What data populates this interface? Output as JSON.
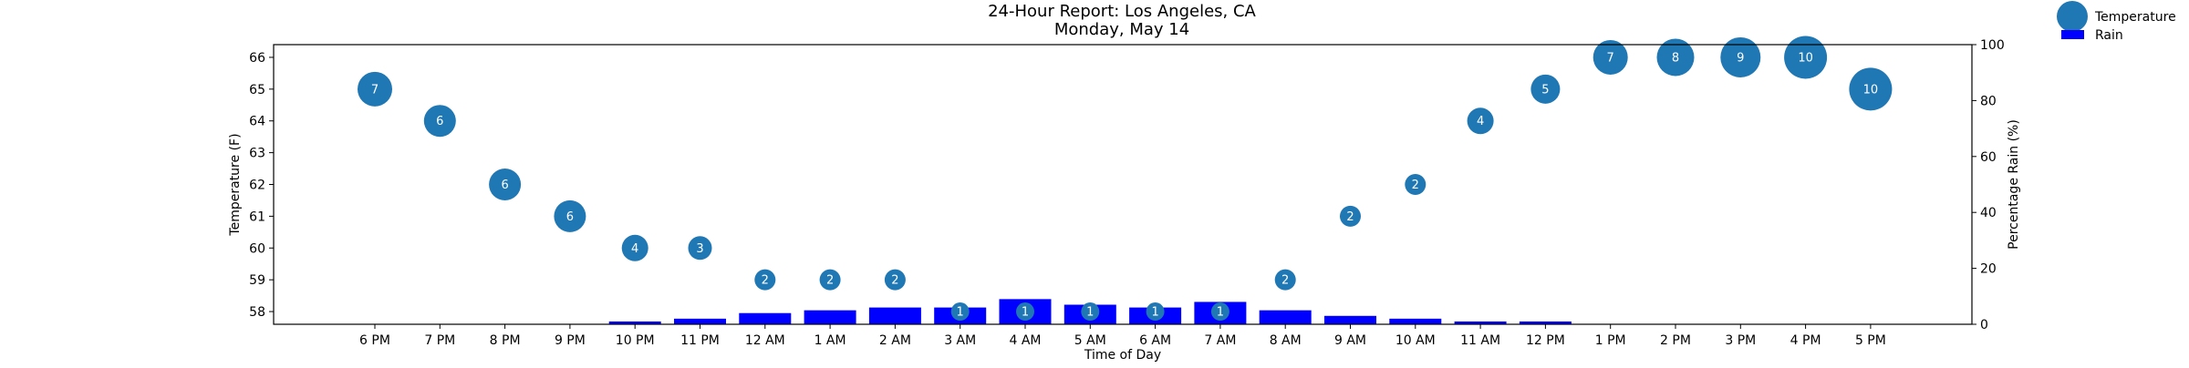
{
  "chart_data": {
    "type": "scatter",
    "title": "24-Hour Report: Los Angeles, CA",
    "subtitle": "Monday, May 14",
    "xlabel": "Time of Day",
    "ylabel": "Temperature (F)",
    "ylabel_right": "Percentage Rain (%)",
    "categories": [
      "6 PM",
      "7 PM",
      "8 PM",
      "9 PM",
      "10 PM",
      "11 PM",
      "12 AM",
      "1 AM",
      "2 AM",
      "3 AM",
      "4 AM",
      "5 AM",
      "6 AM",
      "7 AM",
      "8 AM",
      "9 AM",
      "10 AM",
      "11 AM",
      "12 PM",
      "1 PM",
      "2 PM",
      "3 PM",
      "4 PM",
      "5 PM"
    ],
    "ylim": [
      57.6,
      66.4
    ],
    "yticks": [
      58,
      59,
      60,
      61,
      62,
      63,
      64,
      65,
      66
    ],
    "ylim_right": [
      0,
      100
    ],
    "yticks_right": [
      0,
      20,
      40,
      60,
      80,
      100
    ],
    "series": [
      {
        "name": "Temperature",
        "kind": "bubble",
        "color": "#1f77b4",
        "values": [
          65,
          64,
          62,
          61,
          60,
          60,
          59,
          59,
          59,
          58,
          58,
          58,
          58,
          58,
          59,
          61,
          62,
          64,
          65,
          66,
          66,
          66,
          66,
          65
        ],
        "labels": [
          7,
          6,
          6,
          6,
          4,
          3,
          2,
          2,
          2,
          1,
          1,
          1,
          1,
          1,
          2,
          2,
          2,
          4,
          5,
          7,
          8,
          9,
          10,
          10
        ]
      },
      {
        "name": "Rain",
        "kind": "bar",
        "axis": "right",
        "color": "#0000ff",
        "values": [
          0,
          0,
          0,
          0,
          1,
          2,
          4,
          5,
          6,
          6,
          9,
          7,
          6,
          8,
          5,
          3,
          2,
          1,
          1,
          0,
          0,
          0,
          0,
          0
        ]
      }
    ],
    "legend": [
      {
        "label": "Temperature",
        "marker": "circle",
        "color": "#1f77b4"
      },
      {
        "label": "Rain",
        "marker": "rect",
        "color": "#0000ff"
      }
    ],
    "legend_position": "outside top-right",
    "grid": false
  }
}
